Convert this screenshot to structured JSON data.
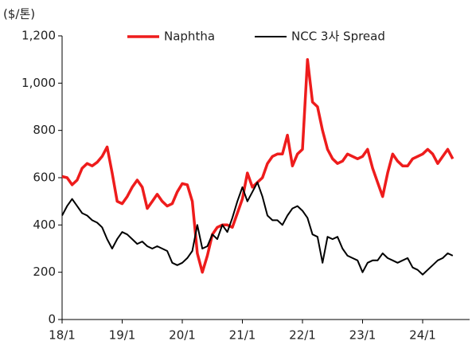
{
  "chart_data": {
    "type": "line",
    "y_label": "($/톤)",
    "categories": [
      "18/1",
      null,
      null,
      null,
      null,
      null,
      null,
      null,
      null,
      null,
      null,
      null,
      "19/1",
      null,
      null,
      null,
      null,
      null,
      null,
      null,
      null,
      null,
      null,
      null,
      "20/1",
      null,
      null,
      null,
      null,
      null,
      null,
      null,
      null,
      null,
      null,
      null,
      "21/1",
      null,
      null,
      null,
      null,
      null,
      null,
      null,
      null,
      null,
      null,
      null,
      "22/1",
      null,
      null,
      null,
      null,
      null,
      null,
      null,
      null,
      null,
      null,
      null,
      "23/1",
      null,
      null,
      null,
      null,
      null,
      null,
      null,
      null,
      null,
      null,
      null,
      "24/1",
      null,
      null,
      null,
      null,
      null,
      null
    ],
    "series": [
      {
        "name": "Naphtha",
        "color": "#ee1c1c",
        "values": [
          605,
          600,
          570,
          590,
          640,
          660,
          650,
          665,
          690,
          730,
          620,
          500,
          490,
          520,
          560,
          590,
          560,
          470,
          500,
          530,
          500,
          480,
          490,
          540,
          575,
          570,
          500,
          280,
          200,
          270,
          360,
          390,
          400,
          400,
          390,
          450,
          510,
          620,
          560,
          580,
          600,
          660,
          690,
          700,
          700,
          780,
          650,
          700,
          720,
          1100,
          920,
          900,
          800,
          720,
          680,
          660,
          670,
          700,
          690,
          680,
          690,
          720,
          640,
          580,
          520,
          620,
          700,
          670,
          650,
          650,
          680,
          690,
          700,
          720,
          700,
          660,
          690,
          720,
          680
        ]
      },
      {
        "name": "NCC 3사 Spread",
        "color": "#000000",
        "values": [
          440,
          480,
          510,
          480,
          450,
          440,
          420,
          410,
          390,
          340,
          300,
          340,
          370,
          360,
          340,
          320,
          330,
          310,
          300,
          310,
          300,
          290,
          240,
          230,
          240,
          260,
          290,
          400,
          300,
          310,
          360,
          340,
          400,
          370,
          430,
          500,
          560,
          500,
          540,
          580,
          520,
          440,
          420,
          420,
          400,
          440,
          470,
          480,
          460,
          430,
          360,
          350,
          240,
          350,
          340,
          350,
          300,
          270,
          260,
          250,
          200,
          240,
          250,
          250,
          280,
          260,
          250,
          240,
          250,
          260,
          220,
          210,
          190,
          210,
          230,
          250,
          260,
          280,
          270
        ]
      }
    ],
    "ylim": [
      0,
      1200
    ],
    "yticks": [
      0,
      200,
      400,
      600,
      800,
      {
        "value": 1000,
        "label": "1,000"
      },
      {
        "value": 1200,
        "label": "1,200"
      }
    ],
    "legend": "top"
  }
}
